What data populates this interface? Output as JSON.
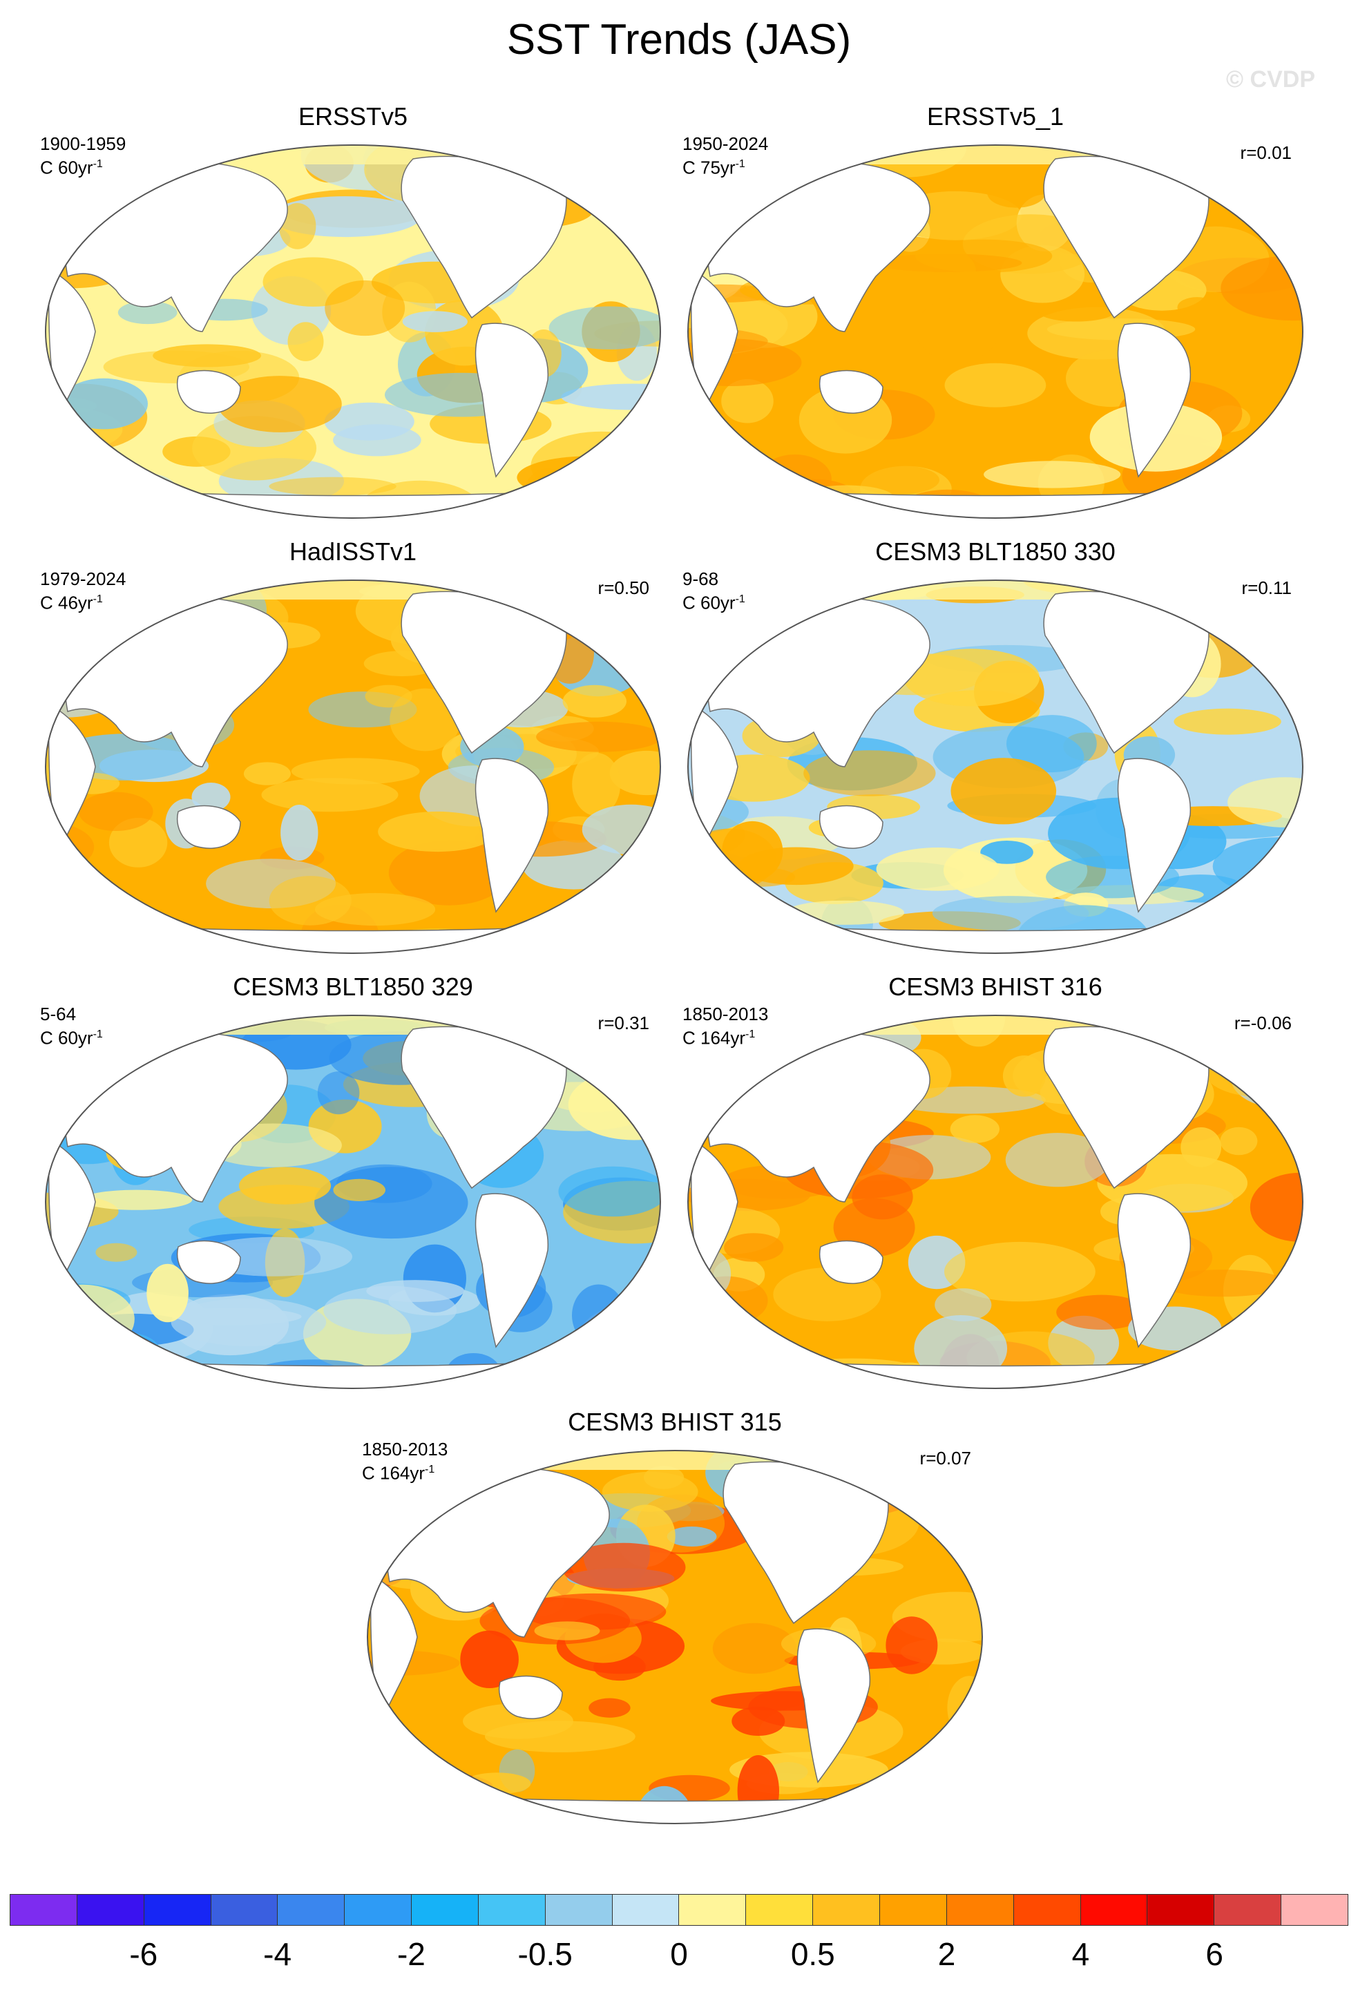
{
  "title": "SST Trends (JAS)",
  "watermark": "© CVDP",
  "panels": [
    {
      "name": "ERSSTv5",
      "period": "1900-1959",
      "units": "C 60yr",
      "corr": "",
      "palette": [
        "#fff59a",
        "#ffd43a",
        "#ffb000",
        "#ffc926",
        "#b9dcf1",
        "#7dc6ee"
      ]
    },
    {
      "name": "ERSSTv5_1",
      "period": "1950-2024",
      "units": "C 75yr",
      "corr": "r=0.01",
      "palette": [
        "#ffb000",
        "#ffc926",
        "#ff9a00",
        "#ffd43a",
        "#fff59a",
        "#ffb000"
      ]
    },
    {
      "name": "HadISSTv1",
      "period": "1979-2024",
      "units": "C 46yr",
      "corr": "r=0.50",
      "palette": [
        "#ffb000",
        "#ffc926",
        "#ff9a00",
        "#b9dcf1",
        "#ffd43a",
        "#7dc6ee"
      ]
    },
    {
      "name": "CESM3 BLT1850 330",
      "period": "9-68",
      "units": "C 60yr",
      "corr": "r=0.11",
      "palette": [
        "#b9dcf1",
        "#7dc6ee",
        "#ffd43a",
        "#ffb000",
        "#44b6f5",
        "#fff59a"
      ]
    },
    {
      "name": "CESM3 BLT1850 329",
      "period": "5-64",
      "units": "C 60yr",
      "corr": "r=0.31",
      "palette": [
        "#7dc6ee",
        "#b9dcf1",
        "#44b6f5",
        "#2e90ee",
        "#fff59a",
        "#ffc926"
      ]
    },
    {
      "name": "CESM3 BHIST 316",
      "period": "1850-2013",
      "units": "C 164yr",
      "corr": "r=-0.06",
      "palette": [
        "#ffb000",
        "#ffc926",
        "#ff9a00",
        "#ff6a00",
        "#b9dcf1",
        "#ffd43a"
      ]
    },
    {
      "name": "CESM3 BHIST 315",
      "period": "1850-2013",
      "units": "C 164yr",
      "corr": "r=0.07",
      "palette": [
        "#ffb000",
        "#ffc926",
        "#ff9a00",
        "#ff4200",
        "#7dc6ee",
        "#ffd43a"
      ]
    }
  ],
  "colorbar": {
    "colors": [
      "#7d2cf0",
      "#3a12f0",
      "#1726f5",
      "#3a5fe0",
      "#3a86ee",
      "#2e9bf5",
      "#16b2f7",
      "#45c4f5",
      "#94cdec",
      "#c5e5f6",
      "#fff59a",
      "#ffdf3a",
      "#ffc01f",
      "#ffa100",
      "#ff7f00",
      "#ff4a00",
      "#ff0a00",
      "#d60000",
      "#d94040",
      "#ffb3b3"
    ],
    "tick_labels": [
      "-6",
      "-4",
      "-2",
      "-0.5",
      "0",
      "0.5",
      "2",
      "4",
      "6"
    ]
  }
}
